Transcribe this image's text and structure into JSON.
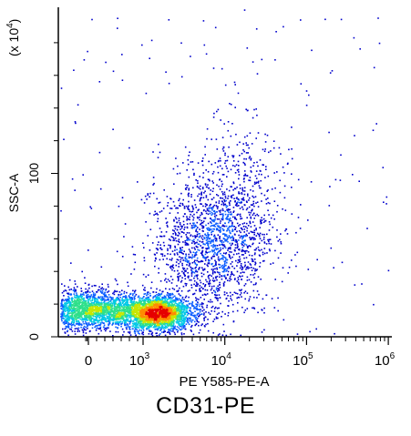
{
  "chart_data": {
    "type": "scatter",
    "title": "CD31-PE",
    "xlabel": "PE Y585-PE-A",
    "ylabel": "SSC-A",
    "y_multiplier_base": "(x 10",
    "y_multiplier_exp": "4",
    "y_multiplier_close": ")",
    "x_scale": "biexponential",
    "x_ticks": [
      {
        "value": 0,
        "base": "0",
        "exp": ""
      },
      {
        "value": 1000,
        "base": "10",
        "exp": "3"
      },
      {
        "value": 10000,
        "base": "10",
        "exp": "4"
      },
      {
        "value": 100000,
        "base": "10",
        "exp": "5"
      },
      {
        "value": 1000000,
        "base": "10",
        "exp": "6"
      }
    ],
    "y_scale": "linear",
    "ylim": [
      0,
      200
    ],
    "y_ticks": [
      {
        "value": 0,
        "label": "0"
      },
      {
        "value": 100,
        "label": "100"
      }
    ],
    "density_colors": [
      "#0000cc",
      "#0a5cff",
      "#00c8e6",
      "#2ee08a",
      "#c8e600",
      "#ff8c00",
      "#e60000"
    ],
    "populations": [
      {
        "x_center": 0,
        "y_center": 17,
        "x_spread_decades": 0.35,
        "y_spread": 6,
        "weight": 0.34
      },
      {
        "x_center": 1500,
        "y_center": 15,
        "x_spread_decades": 0.22,
        "y_spread": 5,
        "weight": 0.36
      },
      {
        "x_center": 6000,
        "y_center": 55,
        "x_spread_decades": 0.35,
        "y_spread": 22,
        "weight": 0.22
      },
      {
        "x_center": 15000,
        "y_center": 80,
        "x_spread_decades": 0.3,
        "y_spread": 25,
        "weight": 0.08
      }
    ]
  }
}
